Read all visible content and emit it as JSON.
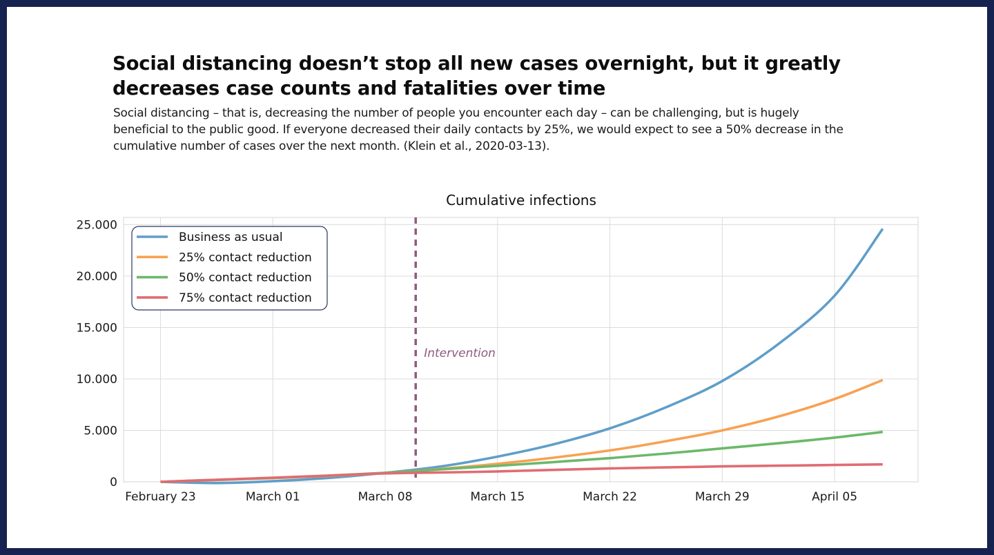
{
  "header": {
    "headline": "Social distancing doesn’t stop all new cases overnight, but it greatly decreases case counts and fatalities over time",
    "subtitle": "Social distancing – that is, decreasing the number of people you encounter each day – can be challenging, but is hugely beneficial to the public good. If everyone decreased their daily contacts by 25%, we would expect to see a 50% decrease in the cumulative number of cases over the next month. (Klein et al., 2020-03-13)."
  },
  "colors": {
    "frame": "#16224f",
    "grid": "#dcdcdc",
    "legend_border": "#2a3560",
    "intervention": "#8e5a80"
  },
  "chart_data": {
    "type": "line",
    "title": "Cumulative infections",
    "xlabel": "",
    "ylabel": "",
    "x_unit": "days since February 23",
    "xlim": [
      -2.3,
      47.2
    ],
    "ylim": [
      0,
      25700
    ],
    "grid": true,
    "legend_position": "top-left",
    "x_ticks": [
      {
        "day": 0,
        "label": "February 23"
      },
      {
        "day": 7,
        "label": "March 01"
      },
      {
        "day": 14,
        "label": "March 08"
      },
      {
        "day": 21,
        "label": "March 15"
      },
      {
        "day": 28,
        "label": "March 22"
      },
      {
        "day": 35,
        "label": "March 29"
      },
      {
        "day": 42,
        "label": "April 05"
      }
    ],
    "y_ticks": [
      {
        "value": 0,
        "label": "0"
      },
      {
        "value": 5000,
        "label": "5.000"
      },
      {
        "value": 10000,
        "label": "10.000"
      },
      {
        "value": 15000,
        "label": "15.000"
      },
      {
        "value": 20000,
        "label": "20.000"
      },
      {
        "value": 25000,
        "label": "25.000"
      }
    ],
    "x": [
      0,
      3.5,
      7,
      10.5,
      14,
      17.5,
      21,
      24.5,
      28,
      31.5,
      35,
      38.5,
      42,
      45
    ],
    "series": [
      {
        "name": "Business as usual",
        "color": "#5f9ec9",
        "values": [
          0,
          -120,
          60,
          380,
          870,
          1500,
          2450,
          3650,
          5200,
          7250,
          9800,
          13400,
          18100,
          24600
        ]
      },
      {
        "name": "25% contact reduction",
        "color": "#f8a152",
        "values": [
          0,
          180,
          360,
          580,
          860,
          1260,
          1750,
          2350,
          3050,
          3950,
          5000,
          6350,
          8050,
          9900
        ]
      },
      {
        "name": "50% contact reduction",
        "color": "#6cb86a",
        "values": [
          0,
          190,
          380,
          600,
          880,
          1220,
          1560,
          1920,
          2300,
          2750,
          3250,
          3750,
          4300,
          4850
        ]
      },
      {
        "name": "75% contact reduction",
        "color": "#e06c72",
        "values": [
          0,
          200,
          400,
          610,
          820,
          910,
          1010,
          1160,
          1300,
          1400,
          1500,
          1570,
          1640,
          1700
        ]
      }
    ],
    "annotations": [
      {
        "type": "vline",
        "day": 15.9,
        "label": "Intervention",
        "style": "dotted"
      }
    ]
  }
}
